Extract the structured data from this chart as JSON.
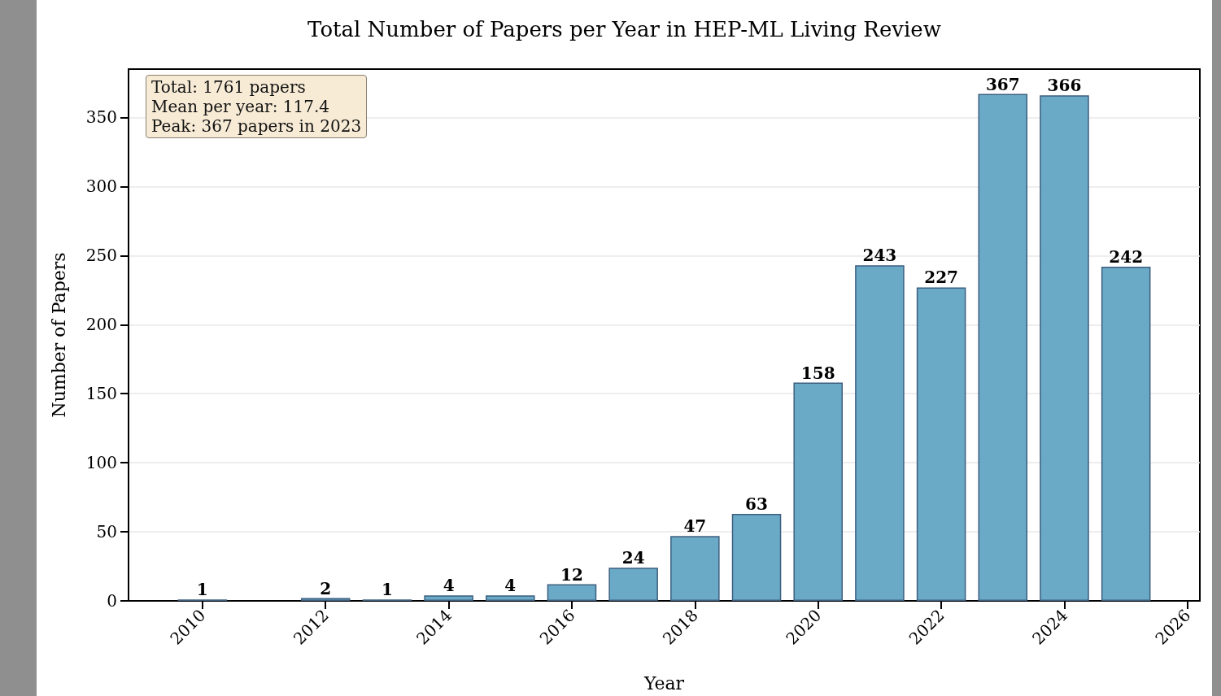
{
  "chart_data": {
    "type": "bar",
    "title": "Total Number of Papers per Year in HEP-ML Living Review",
    "xlabel": "Year",
    "ylabel": "Number of Papers",
    "x": [
      2010,
      2012,
      2013,
      2014,
      2015,
      2016,
      2017,
      2018,
      2019,
      2020,
      2021,
      2022,
      2023,
      2024,
      2025
    ],
    "values": [
      1,
      2,
      1,
      4,
      4,
      12,
      24,
      47,
      63,
      158,
      243,
      227,
      367,
      366,
      242
    ],
    "color": "#6aaac6",
    "xlim": [
      2008.8,
      2026.2
    ],
    "xticks": [
      2010,
      2012,
      2014,
      2016,
      2018,
      2020,
      2022,
      2024,
      2026
    ],
    "ylim": [
      0,
      385
    ],
    "yticks": [
      0,
      50,
      100,
      150,
      200,
      250,
      300,
      350
    ],
    "grid": "y",
    "data_labels": true,
    "annotations": [
      "Total: 1761 papers",
      "Mean per year: 117.4",
      "Peak: 367 papers in 2023"
    ]
  }
}
